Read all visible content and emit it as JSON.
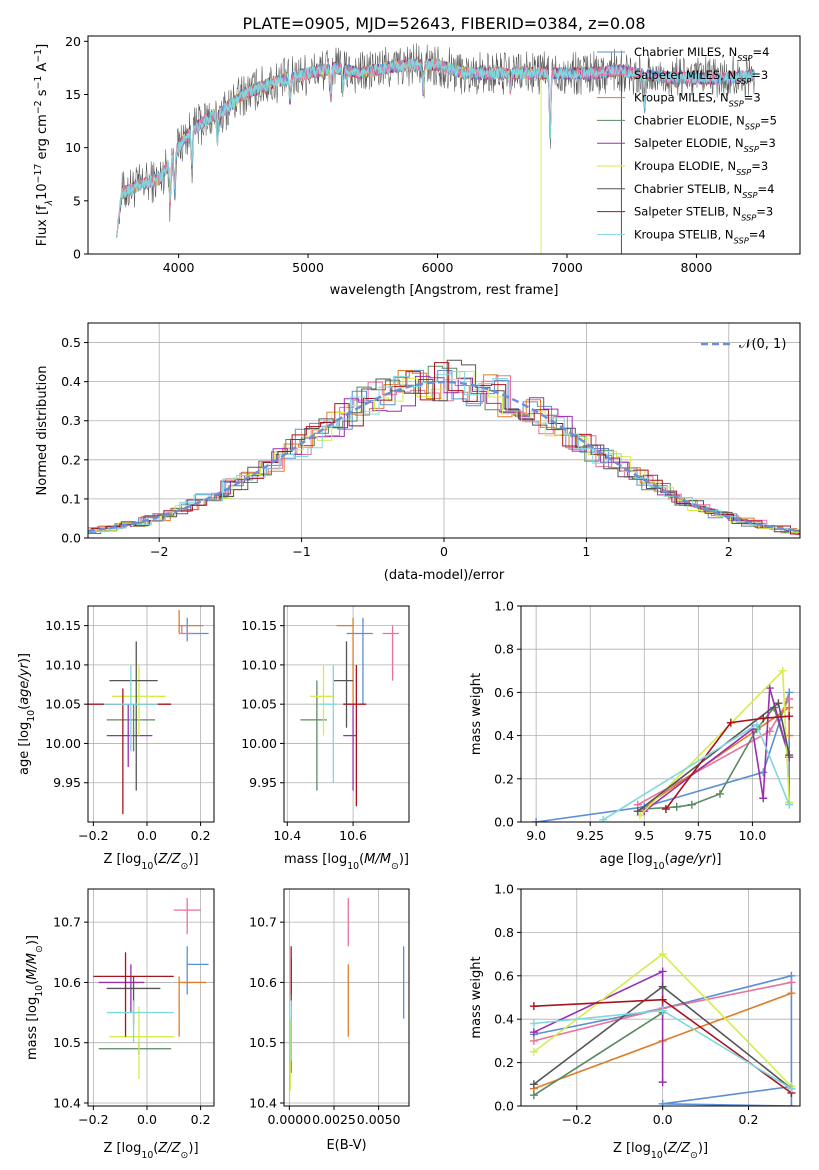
{
  "figure": {
    "title": "PLATE=0905, MJD=52643, FIBERID=0384, z=0.08"
  },
  "colors": {
    "Chabrier MILES": "#5b8fd6",
    "Salpeter MILES": "#e8729c",
    "Kroupa MILES": "#e07b28",
    "Chabrier ELODIE": "#5a8a60",
    "Salpeter ELODIE": "#9a30b0",
    "Kroupa ELODIE": "#d6ec4a",
    "Chabrier STELIB": "#555555",
    "Salpeter STELIB": "#a8141e",
    "Kroupa STELIB": "#7fd8de"
  },
  "chart_data": [
    {
      "id": "spectrum",
      "type": "line",
      "title": "PLATE=0905, MJD=52643, FIBERID=0384, z=0.08",
      "xlabel": "wavelength [Angstrom, rest frame]",
      "ylabel": "Flux [f",
      "xlim": [
        3300,
        8800
      ],
      "ylim": [
        0,
        20.5
      ],
      "xticks": [
        4000,
        5000,
        6000,
        7000,
        8000
      ],
      "yticks": [
        0,
        5,
        10,
        15,
        20
      ],
      "grid": false,
      "legend_position": "right",
      "legend": [
        {
          "pre": "Chabrier MILES, N",
          "n": "4"
        },
        {
          "pre": "Salpeter MILES, N",
          "n": "3"
        },
        {
          "pre": "Kroupa MILES, N",
          "n": "3"
        },
        {
          "pre": "Chabrier ELODIE, N",
          "n": "5"
        },
        {
          "pre": "Salpeter ELODIE, N",
          "n": "3"
        },
        {
          "pre": "Kroupa ELODIE, N",
          "n": "3"
        },
        {
          "pre": "Chabrier STELIB, N",
          "n": "4"
        },
        {
          "pre": "Salpeter STELIB, N",
          "n": "3"
        },
        {
          "pre": "Kroupa STELIB, N",
          "n": "4"
        }
      ],
      "legend_sub": "SSP",
      "continuum": [
        [
          3520,
          5.5
        ],
        [
          3700,
          6.5
        ],
        [
          3850,
          7.0
        ],
        [
          3950,
          9.0
        ],
        [
          4050,
          11.0
        ],
        [
          4200,
          12.5
        ],
        [
          4350,
          13.5
        ],
        [
          4500,
          15.0
        ],
        [
          4700,
          16.0
        ],
        [
          5000,
          17.0
        ],
        [
          5200,
          17.5
        ],
        [
          5400,
          17.0
        ],
        [
          5600,
          17.5
        ],
        [
          5800,
          17.8
        ],
        [
          6000,
          17.8
        ],
        [
          6200,
          17.0
        ],
        [
          6400,
          17.0
        ],
        [
          6600,
          17.0
        ],
        [
          7000,
          17.0
        ],
        [
          7200,
          17.0
        ],
        [
          7400,
          17.3
        ],
        [
          7600,
          16.8
        ],
        [
          7800,
          16.6
        ],
        [
          8000,
          16.5
        ],
        [
          8200,
          16.5
        ],
        [
          8450,
          16.8
        ]
      ],
      "noise_amplitude": 1.3,
      "absorption_features": [
        [
          3934,
          4
        ],
        [
          3969,
          3.5
        ],
        [
          4102,
          3
        ],
        [
          4300,
          2.5
        ],
        [
          4861,
          2
        ],
        [
          5175,
          2.5
        ],
        [
          5270,
          1.5
        ],
        [
          5890,
          2.5
        ],
        [
          6563,
          1.5
        ],
        [
          6870,
          6
        ],
        [
          7600,
          3
        ]
      ],
      "model_cutoffs": [
        [
          3520,
          6800
        ],
        [
          3520,
          7420
        ],
        [
          3520,
          8450
        ]
      ]
    },
    {
      "id": "residuals",
      "type": "line",
      "xlabel": "(data-model)/error",
      "ylabel": "Normed distribution",
      "xlim": [
        -2.5,
        2.5
      ],
      "ylim": [
        0,
        0.55
      ],
      "xticks": [
        -2,
        -1,
        0,
        1,
        2
      ],
      "yticks": [
        0.0,
        0.1,
        0.2,
        0.3,
        0.4,
        0.5
      ],
      "grid": true,
      "legend_position": "top-right",
      "legend": "𝒩(0, 1)",
      "bin_width": 0.1,
      "reference_curve": "standard normal",
      "histogram_model": "normal with per-bin scatter",
      "scatter": 0.03
    },
    {
      "id": "age-vs-Z",
      "type": "scatter",
      "xlabel": "Z [log",
      "ylabel": "age  [log",
      "xlim": [
        -0.22,
        0.25
      ],
      "ylim": [
        9.9,
        10.175
      ],
      "xticks": [
        -0.2,
        0.0,
        0.2
      ],
      "yticks": [
        9.95,
        10.0,
        10.05,
        10.1,
        10.15
      ],
      "grid": true,
      "points": [
        {
          "model": "Chabrier MILES",
          "x": 0.15,
          "y": 10.14,
          "xerr": [
            0.0,
            0.08
          ],
          "yerr": [
            0.01,
            0.02
          ]
        },
        {
          "model": "Salpeter MILES",
          "x": 0.13,
          "y": 10.14,
          "xerr": [
            0.01,
            0.04
          ],
          "yerr": [
            0.0,
            0.01
          ]
        },
        {
          "model": "Kroupa MILES",
          "x": 0.12,
          "y": 10.15,
          "xerr": [
            0.0,
            0.09
          ],
          "yerr": [
            0.01,
            0.02
          ]
        },
        {
          "model": "Chabrier ELODIE",
          "x": -0.05,
          "y": 10.03,
          "xerr": [
            0.1,
            0.08
          ],
          "yerr": [
            0.04,
            0.02
          ]
        },
        {
          "model": "Salpeter ELODIE",
          "x": -0.07,
          "y": 10.01,
          "xerr": [
            0.08,
            0.09
          ],
          "yerr": [
            0.04,
            0.04
          ]
        },
        {
          "model": "Kroupa ELODIE",
          "x": -0.03,
          "y": 10.06,
          "xerr": [
            0.1,
            0.1
          ],
          "yerr": [
            0.05,
            0.04
          ]
        },
        {
          "model": "Chabrier STELIB",
          "x": -0.04,
          "y": 10.08,
          "xerr": [
            0.1,
            0.08
          ],
          "yerr": [
            0.14,
            0.05
          ]
        },
        {
          "model": "Salpeter STELIB",
          "x": -0.09,
          "y": 10.05,
          "xerr": [
            0.13,
            0.18
          ],
          "yerr": [
            0.14,
            0.02
          ]
        },
        {
          "model": "Kroupa STELIB",
          "x": -0.06,
          "y": 10.05,
          "xerr": [
            0.1,
            0.1
          ],
          "yerr": [
            0.06,
            0.05
          ]
        }
      ]
    },
    {
      "id": "age-vs-mass",
      "type": "scatter",
      "xlabel": "mass [log",
      "ylabel": "",
      "xlim": [
        10.39,
        10.77
      ],
      "ylim": [
        9.9,
        10.175
      ],
      "xticks": [
        10.4,
        10.6
      ],
      "yticks": [
        9.95,
        10.0,
        10.05,
        10.1,
        10.15
      ],
      "grid": true,
      "points": [
        {
          "model": "Chabrier MILES",
          "x": 10.63,
          "y": 10.14,
          "xerr": [
            0.05,
            0.03
          ],
          "yerr": [
            0.09,
            0.02
          ]
        },
        {
          "model": "Salpeter MILES",
          "x": 10.72,
          "y": 10.14,
          "xerr": [
            0.03,
            0.02
          ],
          "yerr": [
            0.06,
            0.01
          ]
        },
        {
          "model": "Kroupa MILES",
          "x": 10.6,
          "y": 10.15,
          "xerr": [
            0.05,
            0.0
          ],
          "yerr": [
            0.1,
            0.01
          ]
        },
        {
          "model": "Chabrier ELODIE",
          "x": 10.49,
          "y": 10.03,
          "xerr": [
            0.05,
            0.03
          ],
          "yerr": [
            0.09,
            0.05
          ]
        },
        {
          "model": "Salpeter ELODIE",
          "x": 10.6,
          "y": 10.01,
          "xerr": [
            0.03,
            0.01
          ],
          "yerr": [
            0.07,
            0.04
          ]
        },
        {
          "model": "Kroupa ELODIE",
          "x": 10.51,
          "y": 10.06,
          "xerr": [
            0.04,
            0.03
          ],
          "yerr": [
            0.05,
            0.04
          ]
        },
        {
          "model": "Chabrier STELIB",
          "x": 10.58,
          "y": 10.08,
          "xerr": [
            0.04,
            0.02
          ],
          "yerr": [
            0.06,
            0.05
          ]
        },
        {
          "model": "Salpeter STELIB",
          "x": 10.61,
          "y": 10.05,
          "xerr": [
            0.04,
            0.03
          ],
          "yerr": [
            0.13,
            0.05
          ]
        },
        {
          "model": "Kroupa STELIB",
          "x": 10.54,
          "y": 10.05,
          "xerr": [
            0.04,
            0.01
          ],
          "yerr": [
            0.1,
            0.05
          ]
        }
      ]
    },
    {
      "id": "massweight-vs-age",
      "type": "line",
      "xlabel": "age  [log",
      "ylabel": "mass weight",
      "xlim": [
        8.93,
        10.22
      ],
      "ylim": [
        0,
        1.0
      ],
      "xticks": [
        9.0,
        9.25,
        9.5,
        9.75,
        10.0
      ],
      "yticks": [
        0.0,
        0.2,
        0.4,
        0.6,
        0.8,
        1.0
      ],
      "grid": true,
      "series": [
        {
          "model": "Chabrier MILES",
          "x": [
            9.0,
            9.5,
            10.05,
            10.17,
            10.17
          ],
          "y": [
            0.0,
            0.07,
            0.23,
            0.6,
            0.09
          ]
        },
        {
          "model": "Salpeter MILES",
          "x": [
            9.47,
            10.08,
            10.17
          ],
          "y": [
            0.08,
            0.42,
            0.57
          ]
        },
        {
          "model": "Kroupa MILES",
          "x": [
            9.47,
            10.17,
            10.17
          ],
          "y": [
            0.05,
            0.53,
            0.4
          ]
        },
        {
          "model": "Chabrier ELODIE",
          "x": [
            9.5,
            9.65,
            9.72,
            9.85,
            10.02,
            10.1,
            10.17
          ],
          "y": [
            0.06,
            0.07,
            0.08,
            0.13,
            0.43,
            0.53,
            0.3
          ]
        },
        {
          "model": "Salpeter ELODIE",
          "x": [
            9.5,
            10.0,
            10.05,
            10.08,
            10.17
          ],
          "y": [
            0.05,
            0.43,
            0.11,
            0.62,
            0.3
          ]
        },
        {
          "model": "Kroupa ELODIE",
          "x": [
            9.48,
            10.14,
            10.17
          ],
          "y": [
            0.03,
            0.7,
            0.09
          ]
        },
        {
          "model": "Chabrier STELIB",
          "x": [
            9.47,
            10.12,
            10.17
          ],
          "y": [
            0.05,
            0.55,
            0.31
          ]
        },
        {
          "model": "Salpeter STELIB",
          "x": [
            9.6,
            9.9,
            10.05,
            10.17
          ],
          "y": [
            0.06,
            0.46,
            0.48,
            0.49
          ]
        },
        {
          "model": "Kroupa STELIB",
          "x": [
            9.31,
            10.02,
            10.17
          ],
          "y": [
            0.01,
            0.45,
            0.08
          ]
        }
      ]
    },
    {
      "id": "mass-vs-Z",
      "type": "scatter",
      "xlabel": "Z [log",
      "ylabel": "mass [log",
      "xlim": [
        -0.22,
        0.25
      ],
      "ylim": [
        10.395,
        10.755
      ],
      "xticks": [
        -0.2,
        0.0,
        0.2
      ],
      "yticks": [
        10.4,
        10.5,
        10.6,
        10.7
      ],
      "grid": true,
      "points": [
        {
          "model": "Chabrier MILES",
          "x": 0.15,
          "y": 10.63,
          "xerr": [
            0.0,
            0.08
          ],
          "yerr": [
            0.05,
            0.03
          ]
        },
        {
          "model": "Salpeter MILES",
          "x": 0.15,
          "y": 10.72,
          "xerr": [
            0.05,
            0.05
          ],
          "yerr": [
            0.04,
            0.02
          ]
        },
        {
          "model": "Kroupa MILES",
          "x": 0.12,
          "y": 10.6,
          "xerr": [
            0.0,
            0.1
          ],
          "yerr": [
            0.09,
            0.01
          ]
        },
        {
          "model": "Chabrier ELODIE",
          "x": -0.03,
          "y": 10.49,
          "xerr": [
            0.15,
            0.12
          ],
          "yerr": [
            0.01,
            0.01
          ]
        },
        {
          "model": "Salpeter ELODIE",
          "x": -0.06,
          "y": 10.6,
          "xerr": [
            0.12,
            0.05
          ],
          "yerr": [
            0.05,
            0.03
          ]
        },
        {
          "model": "Kroupa ELODIE",
          "x": -0.03,
          "y": 10.51,
          "xerr": [
            0.11,
            0.13
          ],
          "yerr": [
            0.07,
            0.05
          ]
        },
        {
          "model": "Chabrier STELIB",
          "x": -0.05,
          "y": 10.59,
          "xerr": [
            0.1,
            0.1
          ],
          "yerr": [
            0.06,
            0.02
          ]
        },
        {
          "model": "Salpeter STELIB",
          "x": -0.08,
          "y": 10.61,
          "xerr": [
            0.12,
            0.18
          ],
          "yerr": [
            0.1,
            0.04
          ]
        },
        {
          "model": "Kroupa STELIB",
          "x": -0.05,
          "y": 10.55,
          "xerr": [
            0.1,
            0.15
          ],
          "yerr": [
            0.05,
            0.02
          ]
        }
      ]
    },
    {
      "id": "mass-vs-EBV",
      "type": "scatter",
      "xlabel": "E(B-V)",
      "ylabel": "",
      "xlim": [
        -0.0003,
        0.0067
      ],
      "ylim": [
        10.395,
        10.755
      ],
      "xticks": [
        0.0,
        0.0025,
        0.005
      ],
      "xtick_labels": [
        "0.0000",
        "0.0025",
        "0.0050"
      ],
      "yticks": [
        10.4,
        10.5,
        10.6,
        10.7
      ],
      "grid": true,
      "points": [
        {
          "model": "Chabrier MILES",
          "x": 0.0064,
          "y": 10.6,
          "yerr": [
            0.06,
            0.06
          ]
        },
        {
          "model": "Salpeter MILES",
          "x": 0.0033,
          "y": 10.7,
          "yerr": [
            0.04,
            0.04
          ]
        },
        {
          "model": "Kroupa MILES",
          "x": 0.0033,
          "y": 10.57,
          "yerr": [
            0.06,
            0.06
          ]
        },
        {
          "model": "Chabrier ELODIE",
          "x": 0.0001,
          "y": 10.5,
          "yerr": [
            0.05,
            0.05
          ]
        },
        {
          "model": "Salpeter ELODIE",
          "x": 0.0001,
          "y": 10.6,
          "yerr": [
            0.04,
            0.04
          ]
        },
        {
          "model": "Kroupa ELODIE",
          "x": 5e-05,
          "y": 10.48,
          "yerr": [
            0.06,
            0.06
          ]
        },
        {
          "model": "Chabrier STELIB",
          "x": 0.0001,
          "y": 10.59,
          "yerr": [
            0.05,
            0.05
          ]
        },
        {
          "model": "Salpeter STELIB",
          "x": 0.0001,
          "y": 10.62,
          "yerr": [
            0.04,
            0.04
          ]
        },
        {
          "model": "Kroupa STELIB",
          "x": 0.0001,
          "y": 10.52,
          "yerr": [
            0.05,
            0.05
          ]
        }
      ]
    },
    {
      "id": "massweight-vs-Z",
      "type": "line",
      "xlabel": "Z [log",
      "ylabel": "mass weight",
      "xlim": [
        -0.33,
        0.32
      ],
      "ylim": [
        0,
        1.0
      ],
      "xticks": [
        -0.2,
        0.0,
        0.2
      ],
      "yticks": [
        0.0,
        0.2,
        0.4,
        0.6,
        0.8,
        1.0
      ],
      "grid": true,
      "series": [
        {
          "model": "Chabrier MILES",
          "x": [
            -0.3,
            0.0,
            0.3,
            0.3,
            0.0,
            0.3
          ],
          "y": [
            0.33,
            0.45,
            0.6,
            0.0,
            0.01,
            0.09
          ]
        },
        {
          "model": "Salpeter MILES",
          "x": [
            -0.3,
            0.0,
            0.3
          ],
          "y": [
            0.3,
            0.45,
            0.57
          ]
        },
        {
          "model": "Kroupa MILES",
          "x": [
            -0.3,
            0.0,
            0.3
          ],
          "y": [
            0.08,
            0.3,
            0.52
          ]
        },
        {
          "model": "Chabrier ELODIE",
          "x": [
            -0.3,
            0.0
          ],
          "y": [
            0.05,
            0.43
          ]
        },
        {
          "model": "Salpeter ELODIE",
          "x": [
            -0.3,
            0.0,
            0.0
          ],
          "y": [
            0.34,
            0.62,
            0.11
          ]
        },
        {
          "model": "Kroupa ELODIE",
          "x": [
            -0.3,
            0.0,
            0.3
          ],
          "y": [
            0.25,
            0.7,
            0.09
          ]
        },
        {
          "model": "Chabrier STELIB",
          "x": [
            -0.3,
            0.0,
            0.3
          ],
          "y": [
            0.1,
            0.55,
            0.08
          ]
        },
        {
          "model": "Salpeter STELIB",
          "x": [
            -0.3,
            0.0,
            0.3
          ],
          "y": [
            0.46,
            0.49,
            0.06
          ]
        },
        {
          "model": "Kroupa STELIB",
          "x": [
            -0.3,
            0.0,
            0.3
          ],
          "y": [
            0.38,
            0.44,
            0.08
          ]
        }
      ]
    }
  ]
}
